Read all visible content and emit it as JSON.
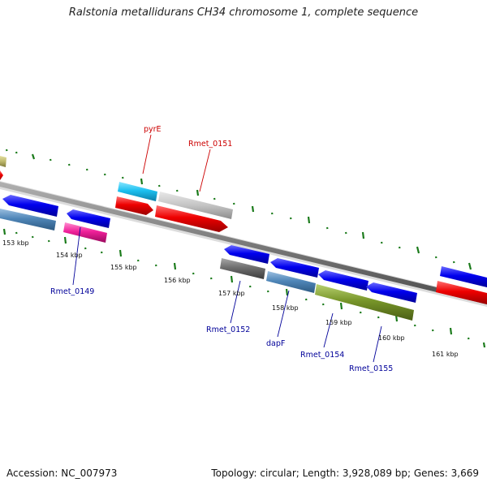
{
  "title": "Ralstonia metallidurans CH34 chromosome 1, complete sequence",
  "footer": {
    "accession": "Accession: NC_007973",
    "summary": "Topology: circular; Length: 3,928,089 bp; Genes: 3,669"
  },
  "tick_labels": [
    "153 kbp",
    "154 kbp",
    "155 kbp",
    "156 kbp",
    "157 kbp",
    "158 kbp",
    "159 kbp",
    "160 kbp",
    "161 kbp"
  ],
  "gene_labels": {
    "pyrE": "pyrE",
    "rmet0151": "Rmet_0151",
    "rmet0149": "Rmet_0149",
    "rmet0152": "Rmet_0152",
    "dapF": "dapF",
    "rmet0154": "Rmet_0154",
    "rmet0155": "Rmet_0155"
  },
  "colors": {
    "forward_label": "#cc0000",
    "reverse_label": "#000099",
    "backbone": "#808080",
    "tick": "#1a7a1a"
  }
}
